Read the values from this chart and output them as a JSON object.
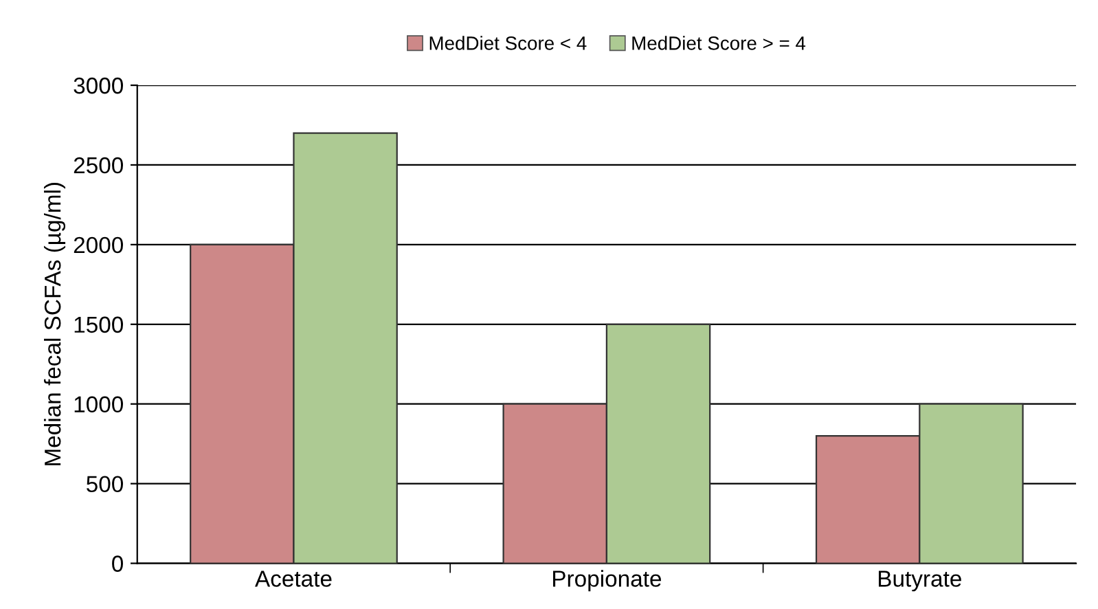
{
  "chart_data": {
    "type": "bar",
    "ylabel": "Median fecal SCFAs (µg/ml)",
    "categories": [
      "Acetate",
      "Propionate",
      "Butyrate"
    ],
    "series": [
      {
        "name": "MedDiet Score < 4",
        "color": "#cd8888",
        "values": [
          2000,
          1000,
          800
        ]
      },
      {
        "name": "MedDiet Score > = 4",
        "color": "#adca93",
        "values": [
          2700,
          1500,
          1000
        ]
      }
    ],
    "ylim": [
      0,
      3000
    ],
    "yticks": [
      0,
      500,
      1000,
      1500,
      2000,
      2500,
      3000
    ],
    "grid": "y",
    "legend": "top"
  }
}
